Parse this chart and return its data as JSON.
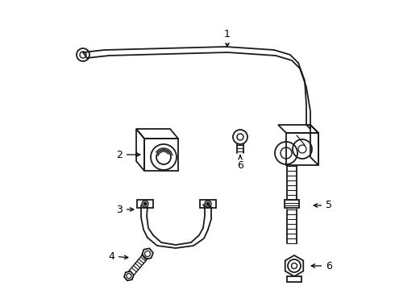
{
  "background_color": "#ffffff",
  "line_color": "#1a1a1a",
  "line_width": 1.3,
  "label_color": "#000000",
  "figsize": [
    4.9,
    3.6
  ],
  "dpi": 100
}
